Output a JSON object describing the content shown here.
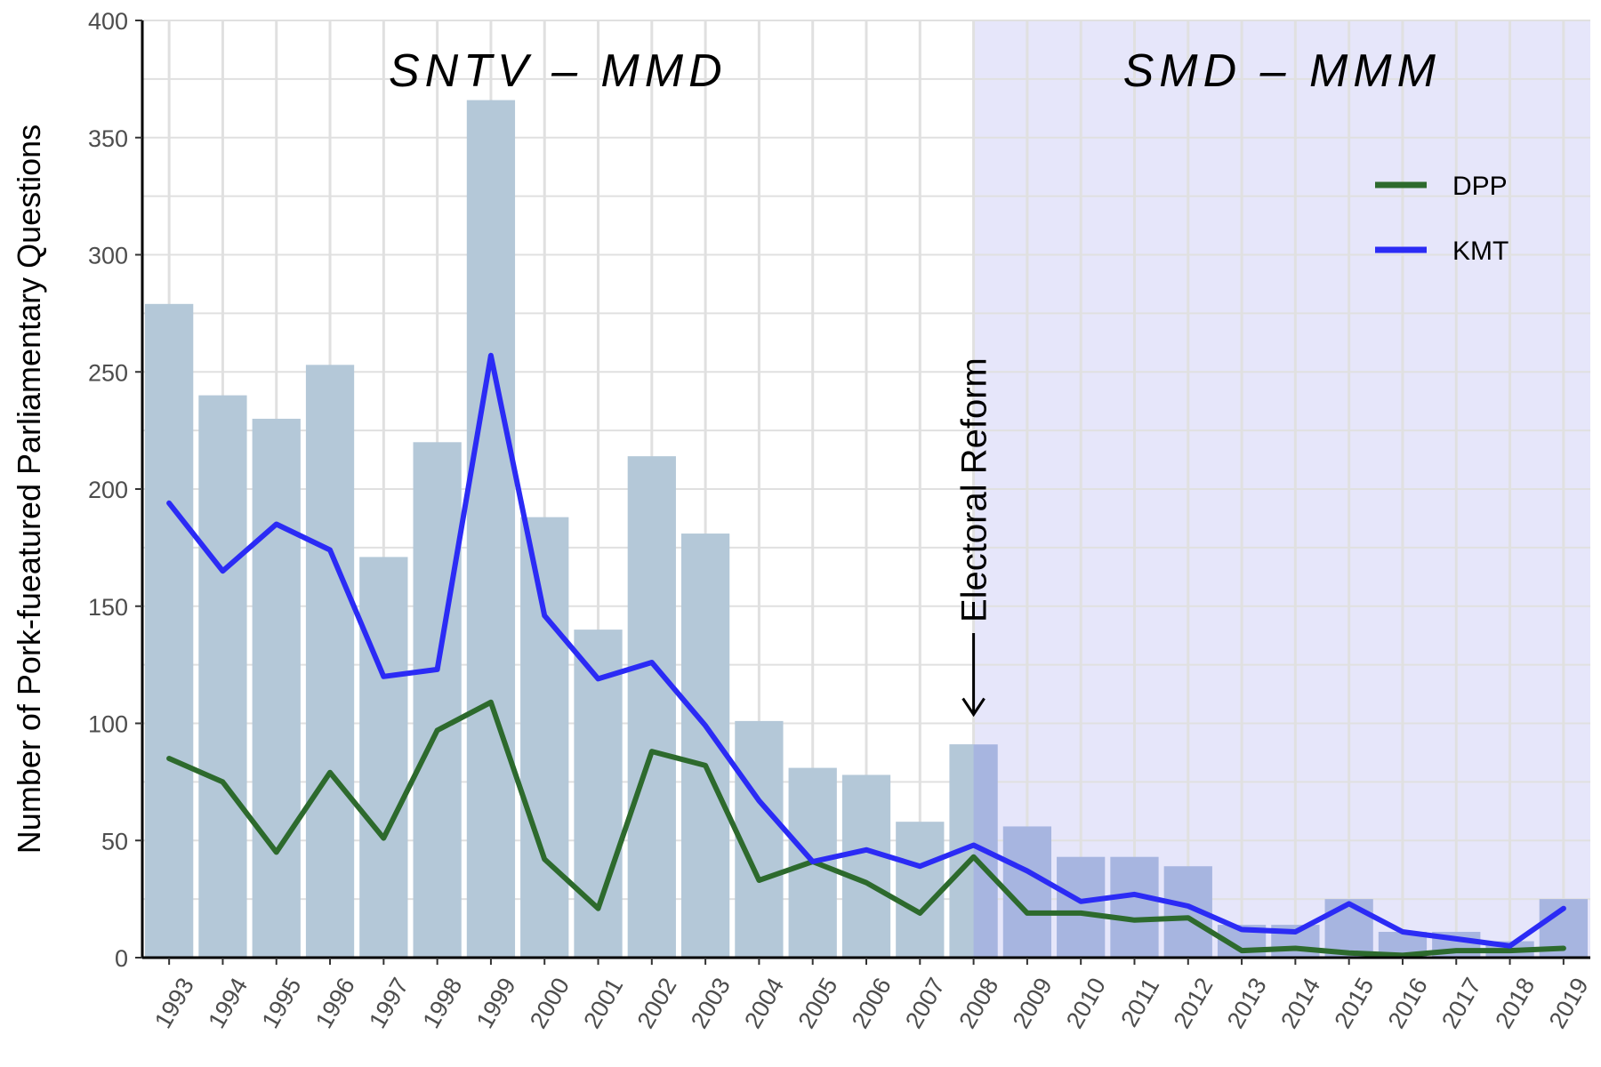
{
  "chart_data": {
    "type": "bar",
    "categories": [
      "1993",
      "1994",
      "1995",
      "1996",
      "1997",
      "1998",
      "1999",
      "2000",
      "2001",
      "2002",
      "2003",
      "2004",
      "2005",
      "2006",
      "2007",
      "2008",
      "2009",
      "2010",
      "2011",
      "2012",
      "2013",
      "2014",
      "2015",
      "2016",
      "2017",
      "2018",
      "2019"
    ],
    "bar_values": [
      279,
      240,
      230,
      253,
      171,
      220,
      366,
      188,
      140,
      214,
      181,
      101,
      81,
      78,
      58,
      91,
      56,
      43,
      43,
      39,
      14,
      14,
      25,
      11,
      11,
      7,
      25
    ],
    "series": [
      {
        "name": "DPP",
        "type": "line",
        "color": "#2d6a2d",
        "values": [
          85,
          75,
          45,
          79,
          51,
          97,
          109,
          42,
          21,
          88,
          82,
          33,
          41,
          32,
          19,
          43,
          19,
          19,
          16,
          17,
          3,
          4,
          2,
          1,
          3,
          3,
          4
        ]
      },
      {
        "name": "KMT",
        "type": "line",
        "color": "#2b2bf5",
        "values": [
          194,
          165,
          185,
          174,
          120,
          123,
          257,
          146,
          119,
          126,
          99,
          67,
          41,
          46,
          39,
          48,
          37,
          24,
          27,
          22,
          12,
          11,
          23,
          11,
          8,
          5,
          21
        ]
      }
    ],
    "ylabel": "Number of Pork-fueatured Parliamentary Questions",
    "xlabel": "",
    "ylim": [
      0,
      400
    ],
    "yticks": [
      0,
      50,
      100,
      150,
      200,
      250,
      300,
      350,
      400
    ],
    "regimes": [
      {
        "label": "SNTV – MMD",
        "shaded": false
      },
      {
        "label": "SMD – MMM",
        "shaded": true,
        "from": "2008"
      }
    ],
    "annotation": {
      "text": "Electoral Reform",
      "at": "2008",
      "arrow_tip_value": 100
    },
    "legend": {
      "placement": "top-right"
    },
    "grid": true,
    "colors": {
      "bar": "#b4c8d8",
      "shade": "#e6e6fa",
      "grid": "#e0e0e0",
      "axis": "#000000"
    }
  }
}
